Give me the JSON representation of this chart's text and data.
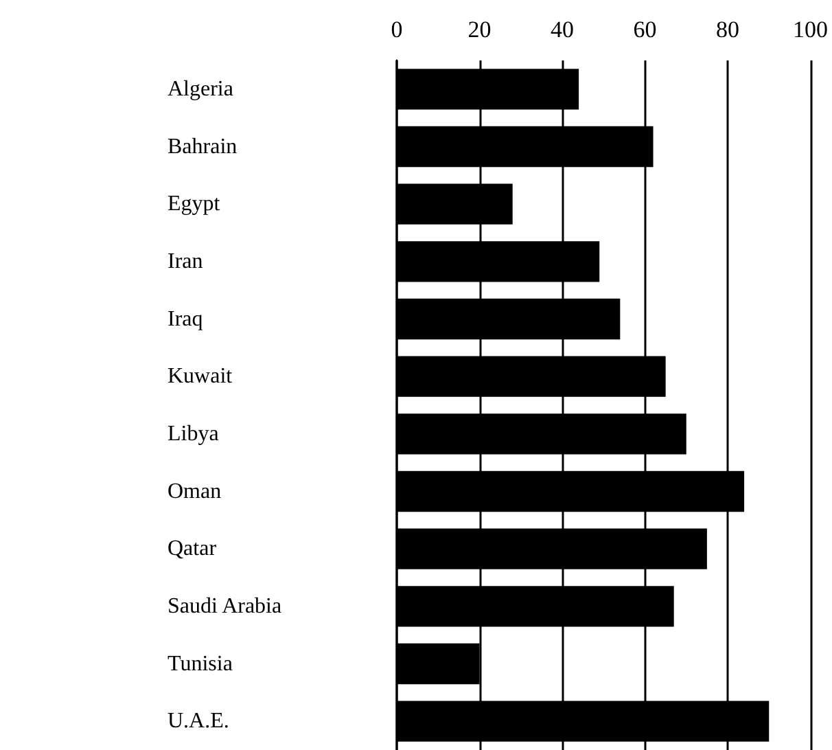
{
  "chart_data": {
    "type": "bar",
    "orientation": "horizontal",
    "categories": [
      "Algeria",
      "Bahrain",
      "Egypt",
      "Iran",
      "Iraq",
      "Kuwait",
      "Libya",
      "Oman",
      "Qatar",
      "Saudi Arabia",
      "Tunisia",
      "U.A.E."
    ],
    "values": [
      44,
      62,
      28,
      49,
      54,
      65,
      70,
      84,
      75,
      67,
      20,
      90
    ],
    "color": "#000000",
    "xlim": [
      0,
      100
    ],
    "xticks": [
      0,
      20,
      40,
      60,
      80,
      100
    ],
    "grid": "x"
  }
}
